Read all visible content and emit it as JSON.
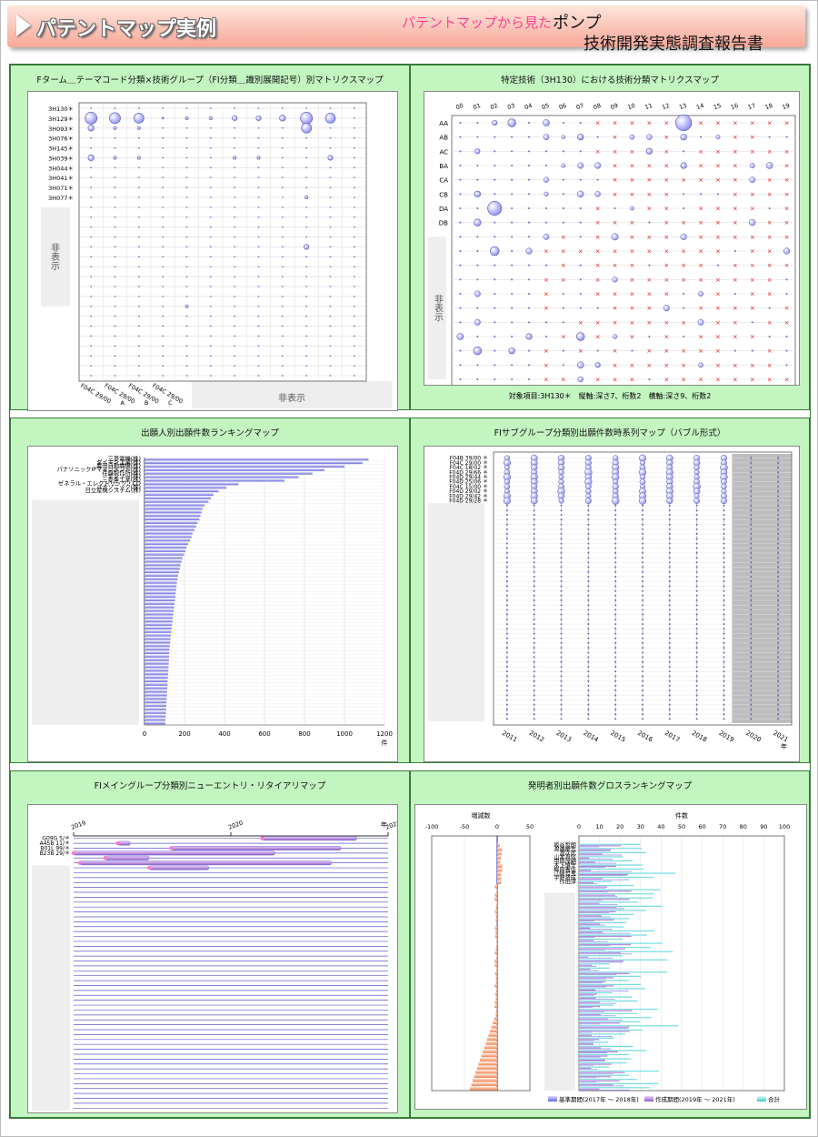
{
  "header": {
    "title": "パテントマップ実例",
    "subtitle": "パテントマップから見た",
    "product": "ポンプ",
    "report": "技術開発実態調査報告書"
  },
  "panels": {
    "p1": {
      "title": "Fターム＿テーマコード分類×技術グループ（FI分類＿識別展開記号）別マトリクスマップ"
    },
    "p2": {
      "title": "特定技術（3H130）における技術分類マトリクスマップ"
    },
    "p3": {
      "title": "出願人別出願件数ランキングマップ"
    },
    "p4": {
      "title": "FIサブグループ分類別出願件数時系列マップ（バブル形式）"
    },
    "p5": {
      "title": "FIメイングループ分類別ニューエントリ・リタイアリマップ"
    },
    "p6": {
      "title": "発明者別出願件数グロスランキングマップ"
    }
  },
  "chart_data": [
    {
      "type": "scatter",
      "title": "Fターム＿テーマコード分類×技術グループ（FI分類＿識別展開記号）別マトリクスマップ",
      "y_categories": [
        "3H130＊",
        "3H129＊",
        "3H093＊",
        "3H076＊",
        "3H145＊",
        "3H039＊",
        "3H044＊",
        "3H041＊",
        "3H071＊",
        "3H077＊"
      ],
      "x_categories": [
        "F04C 29/00",
        "F04C 29/00 A",
        "F04C 29/00 B",
        "F04C 29/00 C"
      ],
      "hidden_label_y": "非表示",
      "hidden_label_x": "非表示",
      "bubbles": [
        {
          "x": 0,
          "y": 1,
          "size": 12
        },
        {
          "x": 1,
          "y": 1,
          "size": 11
        },
        {
          "x": 2,
          "y": 1,
          "size": 10
        },
        {
          "x": 0,
          "y": 2,
          "size": 6
        },
        {
          "x": 1,
          "y": 2,
          "size": 3
        },
        {
          "x": 2,
          "y": 2,
          "size": 3
        },
        {
          "x": 0,
          "y": 5,
          "size": 6
        },
        {
          "x": 1,
          "y": 5,
          "size": 3
        },
        {
          "x": 2,
          "y": 5,
          "size": 3
        }
      ]
    },
    {
      "type": "scatter",
      "title": "特定技術（3H130）における技術分類マトリクスマップ",
      "x_categories": [
        "00",
        "01",
        "02",
        "03",
        "04",
        "05",
        "06",
        "07",
        "08",
        "09",
        "10",
        "11",
        "12",
        "13",
        "14",
        "15",
        "16",
        "17",
        "18",
        "19"
      ],
      "y_categories": [
        "AA",
        "AB",
        "AC",
        "BA",
        "CA",
        "CB",
        "DA",
        "DB"
      ],
      "hidden_label": "非表示",
      "footnote": "対象項目:3H130＊　縦軸:深さ7、桁数2　横軸:深さ9、桁数2",
      "bubbles": [
        {
          "x": 3,
          "y": 0,
          "size": 8
        },
        {
          "x": 13,
          "y": 0,
          "size": 16
        },
        {
          "x": 2,
          "y": 0,
          "size": 5
        },
        {
          "x": 7,
          "y": 1,
          "size": 6
        },
        {
          "x": 13,
          "y": 1,
          "size": 6
        },
        {
          "x": 11,
          "y": 2,
          "size": 6
        },
        {
          "x": 1,
          "y": 2,
          "size": 5
        },
        {
          "x": 13,
          "y": 3,
          "size": 6
        },
        {
          "x": 1,
          "y": 5,
          "size": 6
        },
        {
          "x": 2,
          "y": 6,
          "size": 14
        },
        {
          "x": 1,
          "y": 7,
          "size": 7
        }
      ]
    },
    {
      "type": "bar",
      "title": "出願人別出願件数ランキングマップ",
      "categories": [
        "三菱電機(株)",
        "ダイキン工業(株)",
        "豊田自動織機(株)",
        "パナソニックIPマネジメント(株)",
        "荏原製作所(株)",
        "デンソー(株)",
        "三菱重工業(株)",
        "ゼネラル・エレクトリック・CO",
        "パナソニック(株)",
        "日立産機システム(株)"
      ],
      "values": [
        1120,
        1090,
        1000,
        900,
        840,
        770,
        700,
        470,
        410,
        370
      ],
      "tail_values": [
        345,
        332,
        320,
        300,
        290,
        285,
        280,
        275,
        265,
        258,
        250,
        240,
        235,
        228,
        218,
        210,
        205,
        198,
        190,
        185,
        180,
        176,
        172,
        168,
        165,
        162,
        160,
        158,
        156,
        154,
        152,
        150,
        148,
        146,
        144,
        142,
        140,
        138,
        136,
        134,
        132,
        130,
        128,
        126,
        125,
        124,
        123,
        122,
        121,
        120,
        119,
        118,
        117,
        116,
        115,
        114,
        113,
        112,
        111,
        110,
        109,
        108,
        107,
        106,
        105,
        104
      ],
      "hidden_label": "非表示",
      "xlim": [
        0,
        1200
      ],
      "x_ticks": [
        0,
        200,
        400,
        600,
        800,
        1000,
        1200
      ],
      "x_unit": "件"
    },
    {
      "type": "scatter",
      "title": "FIサブグループ分類別出願件数時系列マップ（バブル形式）",
      "categories": [
        "F04B 39/00 ＊",
        "F04C 29/00 ＊",
        "F04C 18/02 ＊",
        "F04D 29/66 ＊",
        "F04D 29/44 ＊",
        "F04D 25/06 ＊",
        "F04C 15/00 ＊",
        "F04D 29/02 ＊",
        "F04D 29/42 ＊",
        "F04D 29/28 ＊"
      ],
      "x": [
        "2011",
        "2012",
        "2013",
        "2014",
        "2015",
        "2016",
        "2017",
        "2018",
        "2019",
        "2020",
        "2021"
      ],
      "x_unit": "年",
      "shaded_years": [
        "2020",
        "2021"
      ],
      "hidden_label": "非表示"
    },
    {
      "type": "bar",
      "title": "FIメイングループ分類別ニューエントリ・リタイアリマップ",
      "x_ticks": [
        "2019",
        "2020",
        "2021"
      ],
      "x_unit": "年",
      "categories": [
        "G09G 5/＊",
        "A45B 11/＊",
        "B01L 99/＊",
        "B23B 29/＊"
      ],
      "hidden_label": "非表示"
    },
    {
      "type": "bar",
      "title": "発明者別出願件数グロスランキングマップ",
      "categories": [
        "坂谷哲朗",
        "渡邉慶志",
        "潤次武",
        "山本真信",
        "中田茂嗣",
        "木下慎守",
        "柳田善信",
        "江崎哲男",
        "宇野将成",
        "作田淳"
      ],
      "left_axis": {
        "label": "増減数",
        "ticks": [
          -100,
          -50,
          0,
          50
        ]
      },
      "right_axis": {
        "label": "件数",
        "ticks": [
          0,
          10,
          20,
          30,
          40,
          50,
          60,
          70,
          80,
          90,
          100
        ]
      },
      "legend": [
        "基準期間(2017年 ～ 2018年)",
        "作成期間(2019年 ～ 2021年)",
        "合計"
      ],
      "hidden_label": "非表示"
    }
  ]
}
